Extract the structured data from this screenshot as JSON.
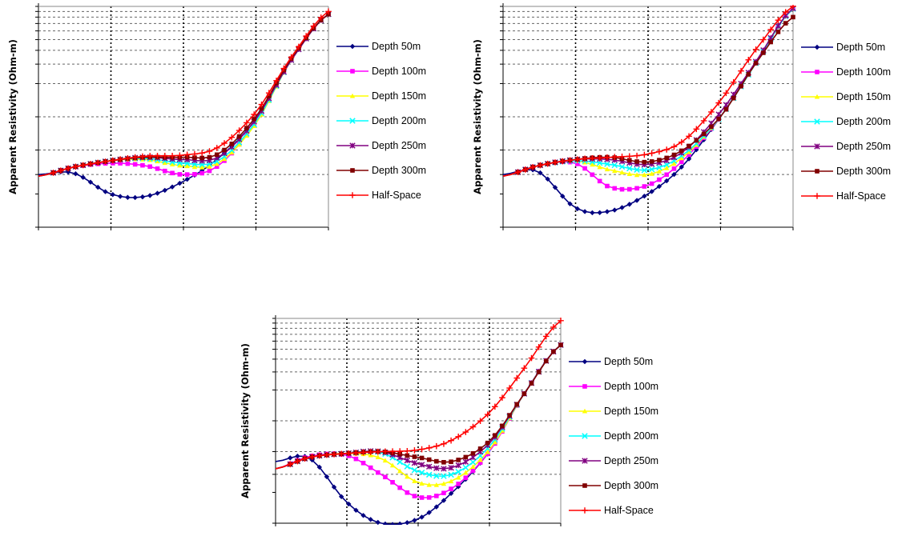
{
  "chart_data": [
    {
      "type": "line",
      "ylabel": "Apparent Resistivity (Ohm-m)",
      "xscale": "log",
      "yscale": "log",
      "xlim": [
        0.01,
        100
      ],
      "ylim": [
        1,
        100
      ],
      "grid": "dotted vertical and dashed horizontal gridlines",
      "legend_position": "right",
      "series": [
        {
          "name": "Depth 50m",
          "color": "#000080",
          "marker": "diamond",
          "x": [
            0.01,
            0.03,
            0.1,
            0.3,
            1,
            3,
            10,
            30,
            100
          ],
          "y": [
            3.0,
            3.1,
            2.0,
            1.9,
            2.6,
            4.2,
            9.5,
            32,
            85
          ]
        },
        {
          "name": "Depth 100m",
          "color": "#ff00ff",
          "marker": "square",
          "x": [
            0.01,
            0.03,
            0.1,
            0.3,
            1,
            3,
            10,
            30,
            100
          ],
          "y": [
            2.9,
            3.5,
            3.8,
            3.6,
            3.0,
            3.6,
            9.0,
            32,
            85
          ]
        },
        {
          "name": "Depth 150m",
          "color": "#ffff00",
          "marker": "triangle",
          "x": [
            0.01,
            0.03,
            0.1,
            0.3,
            1,
            3,
            10,
            30,
            100
          ],
          "y": [
            2.9,
            3.5,
            4.0,
            4.1,
            3.6,
            3.8,
            8.7,
            32,
            85
          ]
        },
        {
          "name": "Depth 200m",
          "color": "#00ffff",
          "marker": "x",
          "x": [
            0.01,
            0.03,
            0.1,
            0.3,
            1,
            3,
            10,
            30,
            100
          ],
          "y": [
            2.9,
            3.5,
            4.0,
            4.2,
            3.8,
            4.0,
            9.0,
            32,
            85
          ]
        },
        {
          "name": "Depth 250m",
          "color": "#800080",
          "marker": "star",
          "x": [
            0.01,
            0.03,
            0.1,
            0.3,
            1,
            3,
            10,
            30,
            100
          ],
          "y": [
            2.9,
            3.5,
            4.0,
            4.3,
            4.1,
            4.3,
            9.5,
            32,
            85
          ]
        },
        {
          "name": "Depth 300m",
          "color": "#800000",
          "marker": "square",
          "x": [
            0.01,
            0.03,
            0.1,
            0.3,
            1,
            3,
            10,
            30,
            100
          ],
          "y": [
            2.9,
            3.5,
            4.0,
            4.3,
            4.3,
            4.6,
            10,
            33,
            85
          ]
        },
        {
          "name": "Half-Space",
          "color": "#ff0000",
          "marker": "plus",
          "x": [
            0.01,
            0.03,
            0.1,
            0.3,
            1,
            3,
            10,
            30,
            100
          ],
          "y": [
            2.9,
            3.5,
            4.0,
            4.4,
            4.5,
            5.3,
            11,
            34,
            90
          ]
        }
      ]
    },
    {
      "type": "line",
      "ylabel": "Apparent Resistivity (Ohm-m)",
      "xscale": "log",
      "yscale": "log",
      "xlim": [
        0.01,
        100
      ],
      "ylim": [
        1,
        100
      ],
      "grid": "dotted vertical and dashed horizontal gridlines",
      "legend_position": "right",
      "series": [
        {
          "name": "Depth 50m",
          "color": "#000080",
          "marker": "diamond",
          "x": [
            0.01,
            0.03,
            0.1,
            0.3,
            1,
            3,
            10,
            30,
            100
          ],
          "y": [
            3.0,
            3.2,
            1.5,
            1.4,
            2.0,
            3.6,
            10,
            30,
            95
          ]
        },
        {
          "name": "Depth 100m",
          "color": "#ff00ff",
          "marker": "square",
          "x": [
            0.01,
            0.03,
            0.1,
            0.3,
            1,
            3,
            10,
            30,
            100
          ],
          "y": [
            2.9,
            3.6,
            3.8,
            2.3,
            2.4,
            4.0,
            10,
            30,
            95
          ]
        },
        {
          "name": "Depth 150m",
          "color": "#ffff00",
          "marker": "triangle",
          "x": [
            0.01,
            0.03,
            0.1,
            0.3,
            1,
            3,
            10,
            30,
            100
          ],
          "y": [
            2.9,
            3.6,
            4.0,
            3.3,
            3.0,
            4.3,
            10,
            30,
            95
          ]
        },
        {
          "name": "Depth 200m",
          "color": "#00ffff",
          "marker": "x",
          "x": [
            0.01,
            0.03,
            0.1,
            0.3,
            1,
            3,
            10,
            30,
            100
          ],
          "y": [
            2.9,
            3.6,
            4.0,
            3.7,
            3.3,
            4.5,
            10,
            30,
            95
          ]
        },
        {
          "name": "Depth 250m",
          "color": "#800080",
          "marker": "star",
          "x": [
            0.01,
            0.03,
            0.1,
            0.3,
            1,
            3,
            10,
            30,
            100
          ],
          "y": [
            2.9,
            3.6,
            4.1,
            4.1,
            3.7,
            4.8,
            11,
            31,
            96
          ]
        },
        {
          "name": "Depth 300m",
          "color": "#800000",
          "marker": "square",
          "x": [
            0.01,
            0.03,
            0.1,
            0.3,
            1,
            3,
            10,
            30,
            100
          ],
          "y": [
            2.9,
            3.6,
            4.1,
            4.3,
            3.9,
            5.0,
            10,
            30,
            80
          ]
        },
        {
          "name": "Half-Space",
          "color": "#ff0000",
          "marker": "plus",
          "x": [
            0.01,
            0.03,
            0.1,
            0.3,
            1,
            3,
            10,
            30,
            100
          ],
          "y": [
            2.9,
            3.6,
            4.1,
            4.3,
            4.6,
            6.0,
            14,
            40,
            100
          ]
        }
      ]
    },
    {
      "type": "line",
      "ylabel": "Apparent Resistivity (Ohm-m)",
      "xscale": "log",
      "yscale": "log",
      "xlim": [
        0.01,
        100
      ],
      "ylim": [
        1,
        100
      ],
      "grid": "dotted vertical and dashed horizontal gridlines",
      "legend_position": "right",
      "series": [
        {
          "name": "Depth 50m",
          "color": "#000080",
          "marker": "diamond",
          "x": [
            0.01,
            0.03,
            0.1,
            0.3,
            1,
            3,
            10,
            30,
            100
          ],
          "y": [
            4.0,
            4.3,
            1.6,
            1.0,
            1.1,
            2.0,
            5.0,
            18,
            55
          ]
        },
        {
          "name": "Depth 100m",
          "color": "#ff00ff",
          "marker": "square",
          "x": [
            0.01,
            0.03,
            0.1,
            0.3,
            1,
            3,
            10,
            30,
            100
          ],
          "y": [
            3.4,
            4.5,
            4.6,
            3.0,
            1.8,
            2.2,
            5.0,
            18,
            55
          ]
        },
        {
          "name": "Depth 150m",
          "color": "#ffff00",
          "marker": "triangle",
          "x": [
            0.01,
            0.03,
            0.1,
            0.3,
            1,
            3,
            10,
            30,
            100
          ],
          "y": [
            3.4,
            4.4,
            4.8,
            4.3,
            2.5,
            2.6,
            5.2,
            18,
            55
          ]
        },
        {
          "name": "Depth 200m",
          "color": "#00ffff",
          "marker": "x",
          "x": [
            0.01,
            0.03,
            0.1,
            0.3,
            1,
            3,
            10,
            30,
            100
          ],
          "y": [
            3.4,
            4.4,
            4.8,
            4.9,
            3.2,
            3.0,
            5.6,
            18,
            55
          ]
        },
        {
          "name": "Depth 250m",
          "color": "#800080",
          "marker": "star",
          "x": [
            0.01,
            0.03,
            0.1,
            0.3,
            1,
            3,
            10,
            30,
            100
          ],
          "y": [
            3.4,
            4.4,
            4.8,
            5.0,
            3.8,
            3.5,
            6.0,
            18,
            55
          ]
        },
        {
          "name": "Depth 300m",
          "color": "#800000",
          "marker": "square",
          "x": [
            0.01,
            0.03,
            0.1,
            0.3,
            1,
            3,
            10,
            30,
            100
          ],
          "y": [
            3.4,
            4.4,
            4.8,
            5.0,
            4.4,
            4.0,
            6.3,
            18,
            55
          ]
        },
        {
          "name": "Half-Space",
          "color": "#ff0000",
          "marker": "plus",
          "x": [
            0.01,
            0.03,
            0.1,
            0.3,
            1,
            3,
            10,
            30,
            100
          ],
          "y": [
            3.4,
            4.4,
            4.8,
            5.0,
            5.2,
            6.5,
            12,
            32,
            95
          ]
        }
      ]
    }
  ]
}
